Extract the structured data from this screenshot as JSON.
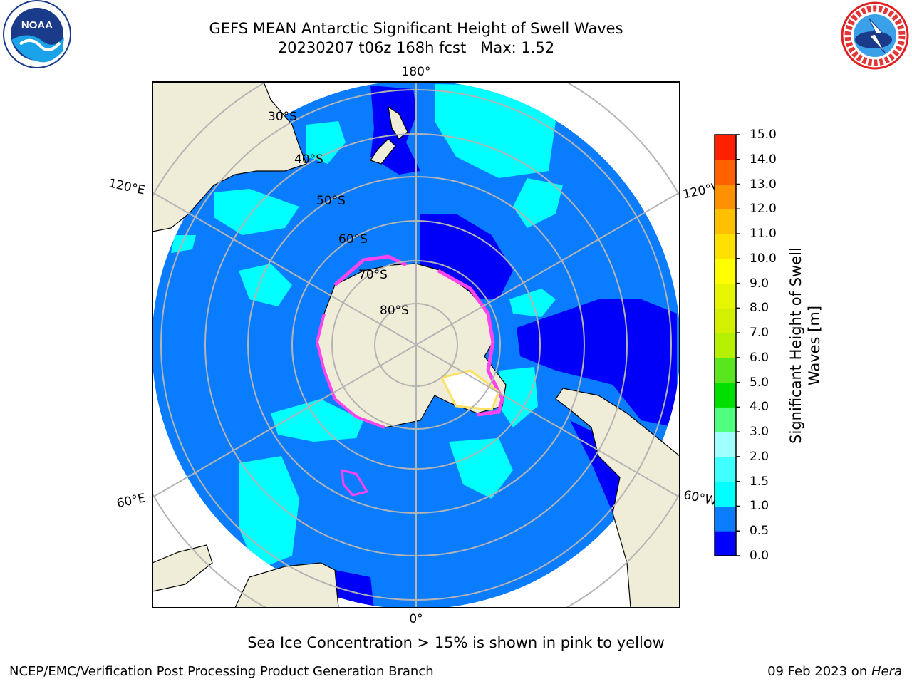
{
  "title": {
    "line1": "GEFS MEAN Antarctic Significant Height of Swell Waves",
    "line2": "20230207 t06z 168h fcst   Max: 1.52"
  },
  "map": {
    "projection": "south-polar-stereographic",
    "longitude_labels": {
      "top": "180°",
      "bottom": "0°",
      "upper_left": "120°E",
      "upper_right": "120°W",
      "lower_left": "60°E",
      "lower_right": "60°W"
    },
    "latitude_labels": [
      "30°S",
      "40°S",
      "50°S",
      "60°S",
      "70°S",
      "80°S"
    ],
    "colors": {
      "ocean_low": "#0a7cff",
      "ocean_calm": "#0000fa",
      "swell_moderate": "#00ffff",
      "land": "#efedd8",
      "sea_ice_edge": "#ff44ee",
      "grid": "#b4b4b4"
    }
  },
  "colorbar": {
    "label": "Significant Height of Swell Waves [m]",
    "ticks": [
      "15.0",
      "14.0",
      "13.0",
      "12.0",
      "11.0",
      "10.0",
      "9.0",
      "8.0",
      "7.0",
      "6.0",
      "5.0",
      "4.0",
      "3.0",
      "2.0",
      "1.5",
      "1.0",
      "0.5",
      "0.0"
    ],
    "colors": [
      "#0000ff",
      "#0a7cff",
      "#00ffff",
      "#40ffff",
      "#a0ffff",
      "#50ff80",
      "#00e000",
      "#5ae61e",
      "#b4f000",
      "#d2f000",
      "#e6f500",
      "#ffff00",
      "#ffe000",
      "#ffc000",
      "#ff9000",
      "#ff6000",
      "#ff2000"
    ]
  },
  "footnote": "Sea Ice Concentration > 15% is shown in pink to yellow",
  "credit": "NCEP/EMC/Verification Post Processing Product Generation Branch",
  "date": {
    "text": "09 Feb 2023 on ",
    "host": "Hera"
  }
}
